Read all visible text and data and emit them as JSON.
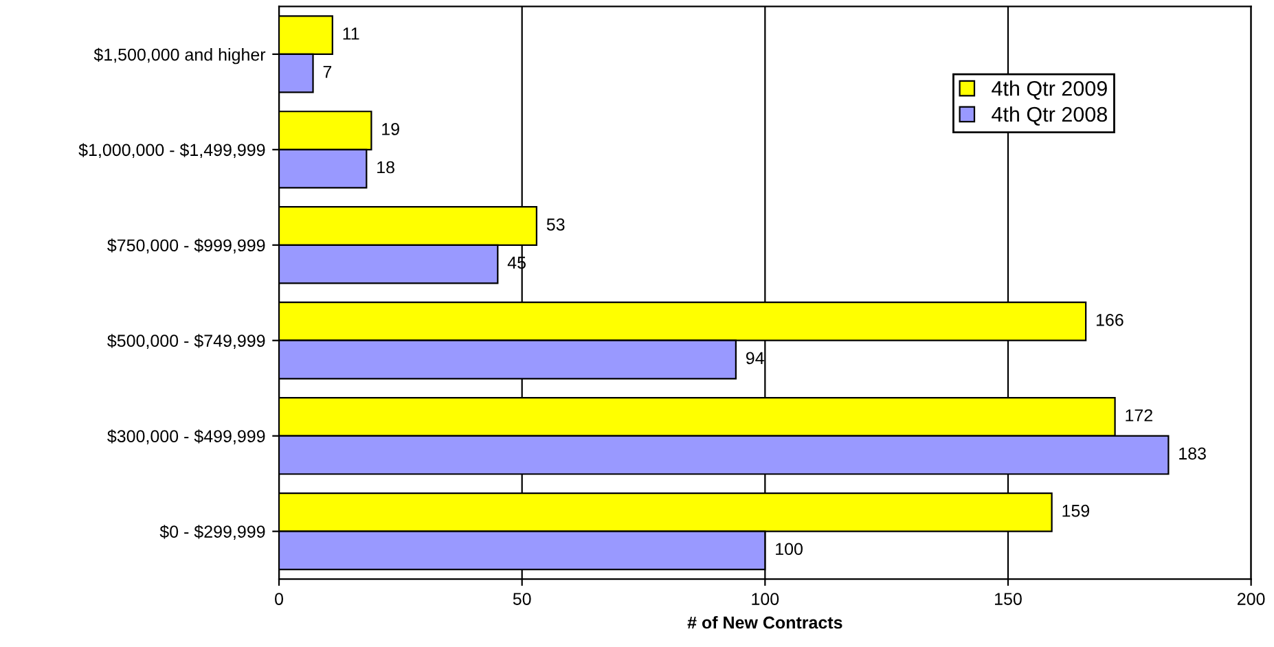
{
  "chart_data": {
    "type": "bar",
    "orientation": "horizontal",
    "xlabel": "# of New Contracts",
    "categories": [
      "$1,500,000 and higher",
      "$1,000,000 - $1,499,999",
      "$750,000 - $999,999",
      "$500,000 - $749,999",
      "$300,000 - $499,999",
      "$0 - $299,999"
    ],
    "series": [
      {
        "name": "4th Qtr 2009",
        "color": "#ffff00",
        "values": [
          11,
          19,
          53,
          166,
          172,
          159
        ]
      },
      {
        "name": "4th Qtr 2008",
        "color": "#9999ff",
        "values": [
          7,
          18,
          45,
          94,
          183,
          100
        ]
      }
    ],
    "xlim": [
      0,
      200
    ],
    "xticks": [
      0,
      50,
      100,
      150,
      200
    ],
    "grid": "x",
    "legend": "top right",
    "data_labels": true
  }
}
